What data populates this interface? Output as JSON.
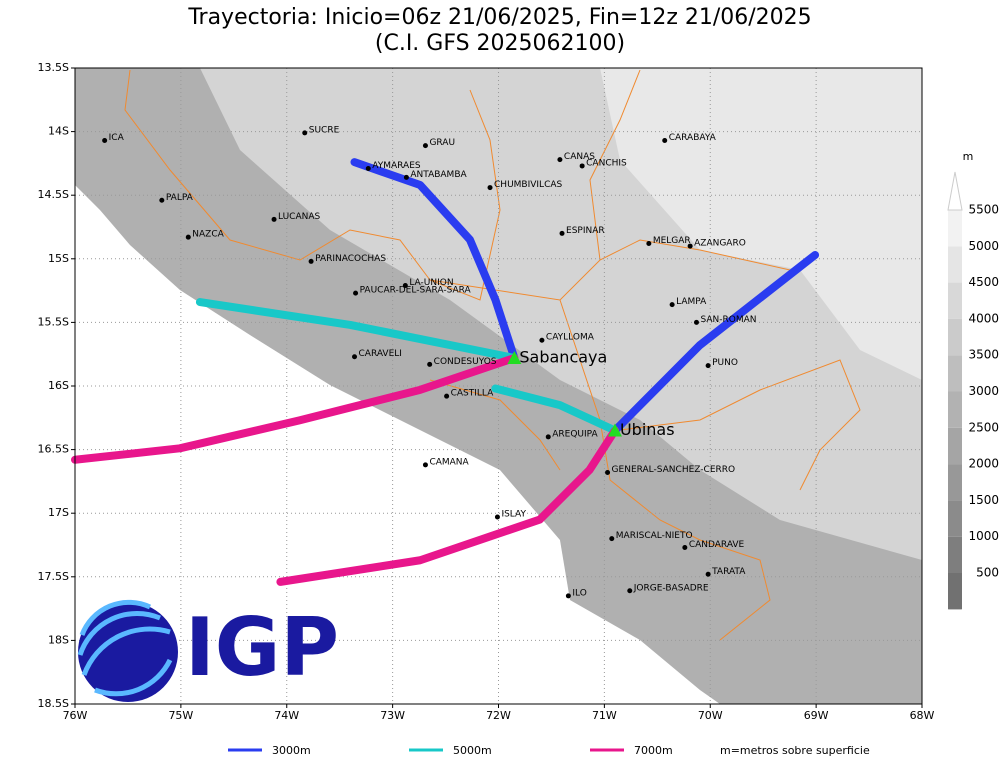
{
  "title": [
    "Trayectoria: Inicio=06z 21/06/2025, Fin=12z 21/06/2025",
    "(C.I. GFS 2025062100)"
  ],
  "map": {
    "xlim": [
      -76,
      -68
    ],
    "ylim": [
      -18.5,
      -13.5
    ],
    "xticks": [
      {
        "value": -76,
        "label": "76W"
      },
      {
        "value": -75,
        "label": "75W"
      },
      {
        "value": -74,
        "label": "74W"
      },
      {
        "value": -73,
        "label": "73W"
      },
      {
        "value": -72,
        "label": "72W"
      },
      {
        "value": -71,
        "label": "71W"
      },
      {
        "value": -70,
        "label": "70W"
      },
      {
        "value": -69,
        "label": "69W"
      },
      {
        "value": -68,
        "label": "68W"
      }
    ],
    "yticks": [
      {
        "value": -13.5,
        "label": "13.5S"
      },
      {
        "value": -14,
        "label": "14S"
      },
      {
        "value": -14.5,
        "label": "14.5S"
      },
      {
        "value": -15,
        "label": "15S"
      },
      {
        "value": -15.5,
        "label": "15.5S"
      },
      {
        "value": -16,
        "label": "16S"
      },
      {
        "value": -16.5,
        "label": "16.5S"
      },
      {
        "value": -17,
        "label": "17S"
      },
      {
        "value": -17.5,
        "label": "17.5S"
      },
      {
        "value": -18,
        "label": "18S"
      },
      {
        "value": -18.5,
        "label": "18.5S"
      }
    ],
    "grid": true,
    "places": [
      {
        "name": "ICA",
        "lon": -75.72,
        "lat": -14.07
      },
      {
        "name": "SUCRE",
        "lon": -73.83,
        "lat": -14.01
      },
      {
        "name": "GRAU",
        "lon": -72.69,
        "lat": -14.11
      },
      {
        "name": "AYMARAES",
        "lon": -73.23,
        "lat": -14.29
      },
      {
        "name": "ANTABAMBA",
        "lon": -72.87,
        "lat": -14.36
      },
      {
        "name": "CANAS",
        "lon": -71.42,
        "lat": -14.22
      },
      {
        "name": "CANCHIS",
        "lon": -71.21,
        "lat": -14.27
      },
      {
        "name": "CARABAYA",
        "lon": -70.43,
        "lat": -14.07
      },
      {
        "name": "CHUMBIVILCAS",
        "lon": -72.08,
        "lat": -14.44
      },
      {
        "name": "PALPA",
        "lon": -75.18,
        "lat": -14.54
      },
      {
        "name": "LUCANAS",
        "lon": -74.12,
        "lat": -14.69
      },
      {
        "name": "NAZCA",
        "lon": -74.93,
        "lat": -14.83
      },
      {
        "name": "ESPINAR",
        "lon": -71.4,
        "lat": -14.8
      },
      {
        "name": "MELGAR",
        "lon": -70.58,
        "lat": -14.88
      },
      {
        "name": "AZANGARO",
        "lon": -70.19,
        "lat": -14.9
      },
      {
        "name": "PARINACOCHAS",
        "lon": -73.77,
        "lat": -15.02
      },
      {
        "name": "LA-UNION",
        "lon": -72.88,
        "lat": -15.21
      },
      {
        "name": "PAUCAR-DEL-SARA-SARA",
        "lon": -73.35,
        "lat": -15.27
      },
      {
        "name": "LAMPA",
        "lon": -70.36,
        "lat": -15.36
      },
      {
        "name": "SAN-ROMAN",
        "lon": -70.13,
        "lat": -15.5
      },
      {
        "name": "CAYLLOMA",
        "lon": -71.59,
        "lat": -15.64
      },
      {
        "name": "CARAVELI",
        "lon": -73.36,
        "lat": -15.77
      },
      {
        "name": "CONDESUYOS",
        "lon": -72.65,
        "lat": -15.83
      },
      {
        "name": "PUNO",
        "lon": -70.02,
        "lat": -15.84
      },
      {
        "name": "CASTILLA",
        "lon": -72.49,
        "lat": -16.08
      },
      {
        "name": "AREQUIPA",
        "lon": -71.53,
        "lat": -16.4
      },
      {
        "name": "GENERAL-SANCHEZ-CERRO",
        "lon": -70.97,
        "lat": -16.68
      },
      {
        "name": "CAMANA",
        "lon": -72.69,
        "lat": -16.62
      },
      {
        "name": "ISLAY",
        "lon": -72.01,
        "lat": -17.03
      },
      {
        "name": "MARISCAL-NIETO",
        "lon": -70.93,
        "lat": -17.2
      },
      {
        "name": "CANDARAVE",
        "lon": -70.24,
        "lat": -17.27
      },
      {
        "name": "TARATA",
        "lon": -70.02,
        "lat": -17.48
      },
      {
        "name": "ILO",
        "lon": -71.34,
        "lat": -17.65
      },
      {
        "name": "JORGE-BASADRE",
        "lon": -70.76,
        "lat": -17.61
      }
    ],
    "volcanoes": [
      {
        "name": "Sabancaya",
        "lon": -71.85,
        "lat": -15.78,
        "color": "#22dd22"
      },
      {
        "name": "Ubinas",
        "lon": -70.9,
        "lat": -16.35,
        "color": "#22dd22"
      }
    ],
    "series": [
      {
        "name": "3000m",
        "color": "#2a3cf0",
        "trajectories": [
          {
            "lon": [
              -73.36,
              -72.74,
              -72.27,
              -72.03,
              -71.85
            ],
            "lat": [
              -14.24,
              -14.42,
              -14.85,
              -15.32,
              -15.78
            ]
          },
          {
            "lon": [
              -70.9,
              -70.1,
              -69.01
            ],
            "lat": [
              -16.35,
              -15.68,
              -14.97
            ]
          }
        ]
      },
      {
        "name": "5000m",
        "color": "#18c8c8",
        "trajectories": [
          {
            "lon": [
              -74.82,
              -73.4,
              -71.85
            ],
            "lat": [
              -15.34,
              -15.52,
              -15.78
            ]
          },
          {
            "lon": [
              -72.03,
              -71.42,
              -70.9
            ],
            "lat": [
              -16.02,
              -16.15,
              -16.35
            ]
          }
        ]
      },
      {
        "name": "7000m",
        "color": "#e8168c",
        "trajectories": [
          {
            "lon": [
              -71.85,
              -72.74,
              -73.88,
              -75.01,
              -76.0
            ],
            "lat": [
              -15.78,
              -16.03,
              -16.27,
              -16.49,
              -16.58
            ]
          },
          {
            "lon": [
              -70.9,
              -71.14,
              -71.61,
              -72.74,
              -74.06
            ],
            "lat": [
              -16.35,
              -16.66,
              -17.05,
              -17.37,
              -17.54
            ]
          }
        ]
      }
    ],
    "note": "m=metros sobre superficie"
  },
  "colorbar": {
    "unit": "m",
    "levels": [
      500,
      1000,
      1500,
      2000,
      2500,
      3000,
      3500,
      4000,
      4500,
      5000,
      5500
    ]
  },
  "logo": "IGP"
}
